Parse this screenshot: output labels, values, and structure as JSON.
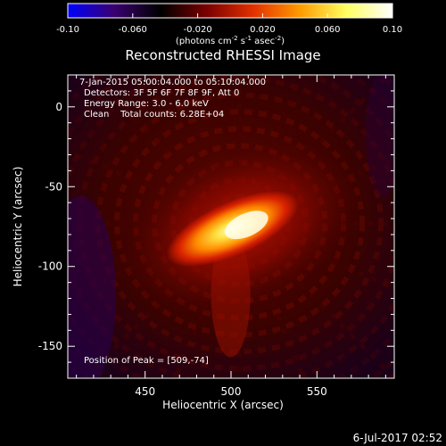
{
  "chart_data": {
    "type": "heatmap",
    "title": "Reconstructed RHESSI Image",
    "xlabel": "Heliocentric X (arcsec)",
    "ylabel": "Heliocentric Y (arcsec)",
    "xlim": [
      405,
      595
    ],
    "ylim": [
      -170,
      20
    ],
    "x_ticks": [
      450,
      500,
      550
    ],
    "y_ticks": [
      0,
      -50,
      -100,
      -150
    ],
    "colorbar": {
      "min": -0.1,
      "max": 0.1,
      "ticks": [
        "-0.10",
        "-0.060",
        "-0.020",
        "0.020",
        "0.060",
        "0.10"
      ],
      "label_prefix": "(photons cm",
      "label_exp1": "-2",
      "label_mid1": " s",
      "label_exp2": "-1",
      "label_mid2": " asec",
      "label_exp3": "-2",
      "label_suffix": ")",
      "colormap_stops": [
        "#0000ff",
        "#3a0070",
        "#000000",
        "#7a0000",
        "#e23000",
        "#ff9a00",
        "#ffff60",
        "#ffffff"
      ]
    },
    "annotations": [
      "7-Jan-2015 05:00:04.000 to 05:10:04.000",
      "Detectors: 3F 5F 6F 7F 8F 9F, Att 0",
      "Energy Range: 3.0 - 6.0 keV",
      "Clean    Total counts: 6.28E+04"
    ],
    "peak_label": "Position of Peak = [509,-74]",
    "peak_position": [
      509,
      -74
    ],
    "source": {
      "center": [
        505,
        -73
      ],
      "peak_value": 0.1
    }
  },
  "footer": {
    "date": "6-Jul-2017 02:52"
  }
}
